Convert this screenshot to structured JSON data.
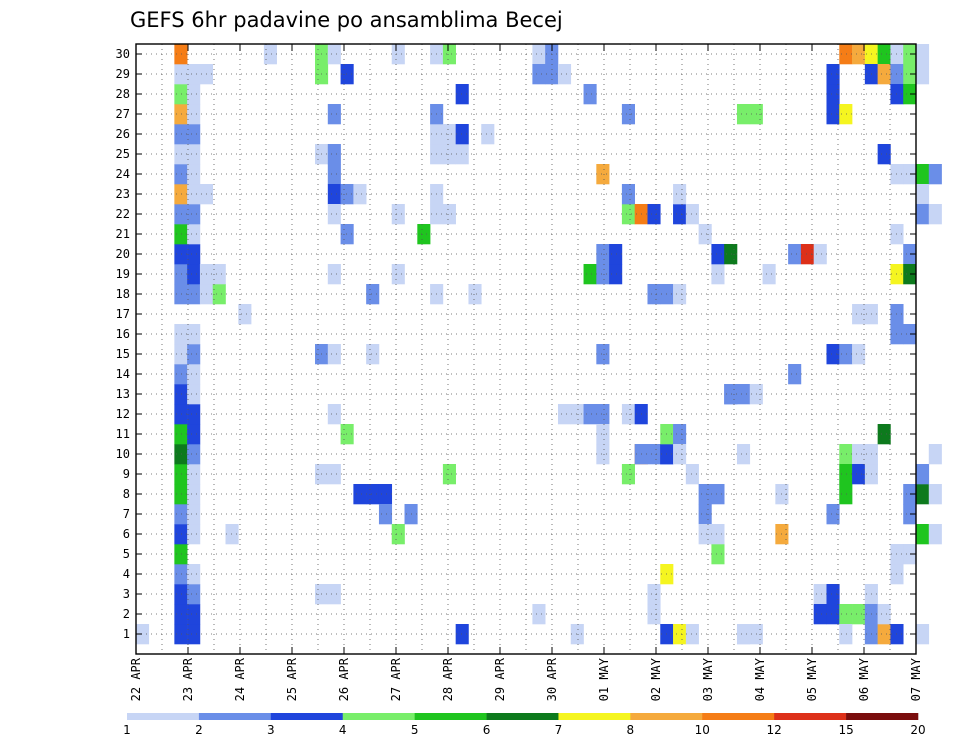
{
  "chart_data": {
    "type": "heatmap",
    "title": "GEFS 6hr padavine po ansamblima Becej",
    "x_tick_labels": [
      "22 APR",
      "23 APR",
      "24 APR",
      "25 APR",
      "26 APR",
      "27 APR",
      "28 APR",
      "29 APR",
      "30 APR",
      "01 MAY",
      "02 MAY",
      "03 MAY",
      "04 MAY",
      "05 MAY",
      "06 MAY",
      "07 MAY"
    ],
    "y_tick_labels": [
      "1",
      "2",
      "3",
      "4",
      "5",
      "6",
      "7",
      "8",
      "9",
      "10",
      "11",
      "12",
      "13",
      "14",
      "15",
      "16",
      "17",
      "18",
      "19",
      "20",
      "21",
      "22",
      "23",
      "24",
      "25",
      "26",
      "27",
      "28",
      "29",
      "30"
    ],
    "y_range": [
      0,
      30
    ],
    "x_steps": 61,
    "grid": true,
    "colorbar": {
      "colors": [
        "#c7d5f5",
        "#6a8ee8",
        "#1f45dc",
        "#78ee6a",
        "#1fc51f",
        "#0d7a1d",
        "#f5f520",
        "#f5aa3d",
        "#f57d16",
        "#dd3019",
        "#7a0d0d"
      ],
      "labels": [
        "1",
        "2",
        "3",
        "4",
        "5",
        "6",
        "7",
        "8",
        "10",
        "12",
        "15",
        "20"
      ]
    },
    "cells": [
      [
        0,
        0,
        1
      ],
      [
        3,
        0,
        3
      ],
      [
        3,
        1,
        3
      ],
      [
        3,
        2,
        3
      ],
      [
        3,
        3,
        2
      ],
      [
        3,
        4,
        5
      ],
      [
        3,
        5,
        3
      ],
      [
        3,
        6,
        2
      ],
      [
        3,
        7,
        5
      ],
      [
        3,
        8,
        5
      ],
      [
        3,
        9,
        6
      ],
      [
        3,
        10,
        5
      ],
      [
        3,
        11,
        3
      ],
      [
        3,
        12,
        3
      ],
      [
        3,
        13,
        2
      ],
      [
        3,
        14,
        1
      ],
      [
        3,
        15,
        1
      ],
      [
        3,
        17,
        2
      ],
      [
        3,
        18,
        2
      ],
      [
        3,
        19,
        3
      ],
      [
        3,
        20,
        5
      ],
      [
        3,
        21,
        2
      ],
      [
        3,
        22,
        8
      ],
      [
        3,
        23,
        2
      ],
      [
        3,
        24,
        1
      ],
      [
        3,
        25,
        2
      ],
      [
        3,
        26,
        8
      ],
      [
        3,
        27,
        4
      ],
      [
        3,
        28,
        1
      ],
      [
        3,
        29,
        9
      ],
      [
        4,
        0,
        3
      ],
      [
        4,
        1,
        3
      ],
      [
        4,
        2,
        2
      ],
      [
        4,
        3,
        1
      ],
      [
        4,
        5,
        1
      ],
      [
        4,
        6,
        1
      ],
      [
        4,
        7,
        1
      ],
      [
        4,
        8,
        1
      ],
      [
        4,
        9,
        2
      ],
      [
        4,
        10,
        3
      ],
      [
        4,
        11,
        3
      ],
      [
        4,
        12,
        1
      ],
      [
        4,
        13,
        1
      ],
      [
        4,
        14,
        2
      ],
      [
        4,
        15,
        1
      ],
      [
        4,
        17,
        2
      ],
      [
        4,
        18,
        3
      ],
      [
        4,
        19,
        3
      ],
      [
        4,
        20,
        1
      ],
      [
        4,
        21,
        2
      ],
      [
        4,
        22,
        1
      ],
      [
        4,
        23,
        1
      ],
      [
        4,
        24,
        1
      ],
      [
        4,
        25,
        2
      ],
      [
        4,
        26,
        1
      ],
      [
        4,
        27,
        1
      ],
      [
        4,
        28,
        1
      ],
      [
        5,
        17,
        1
      ],
      [
        5,
        18,
        1
      ],
      [
        5,
        22,
        1
      ],
      [
        5,
        28,
        1
      ],
      [
        6,
        17,
        4
      ],
      [
        6,
        18,
        1
      ],
      [
        7,
        5,
        1
      ],
      [
        8,
        16,
        1
      ],
      [
        10,
        29,
        1
      ],
      [
        14,
        28,
        4
      ],
      [
        14,
        29,
        4
      ],
      [
        14,
        24,
        1
      ],
      [
        14,
        14,
        2
      ],
      [
        14,
        8,
        1
      ],
      [
        14,
        2,
        1
      ],
      [
        15,
        29,
        1
      ],
      [
        15,
        24,
        2
      ],
      [
        15,
        23,
        2
      ],
      [
        15,
        22,
        3
      ],
      [
        15,
        21,
        1
      ],
      [
        15,
        18,
        1
      ],
      [
        15,
        14,
        1
      ],
      [
        15,
        11,
        1
      ],
      [
        15,
        8,
        1
      ],
      [
        15,
        26,
        2
      ],
      [
        15,
        2,
        1
      ],
      [
        16,
        28,
        3
      ],
      [
        16,
        22,
        2
      ],
      [
        16,
        20,
        2
      ],
      [
        16,
        10,
        4
      ],
      [
        17,
        22,
        1
      ],
      [
        17,
        7,
        3
      ],
      [
        18,
        17,
        2
      ],
      [
        18,
        7,
        3
      ],
      [
        18,
        14,
        1
      ],
      [
        19,
        7,
        3
      ],
      [
        19,
        6,
        2
      ],
      [
        20,
        21,
        1
      ],
      [
        20,
        29,
        1
      ],
      [
        20,
        18,
        1
      ],
      [
        20,
        5,
        4
      ],
      [
        21,
        6,
        2
      ],
      [
        22,
        20,
        5
      ],
      [
        23,
        29,
        1
      ],
      [
        23,
        22,
        1
      ],
      [
        23,
        21,
        1
      ],
      [
        23,
        24,
        1
      ],
      [
        23,
        25,
        1
      ],
      [
        23,
        26,
        2
      ],
      [
        23,
        17,
        1
      ],
      [
        24,
        24,
        1
      ],
      [
        24,
        21,
        1
      ],
      [
        24,
        25,
        1
      ],
      [
        24,
        29,
        4
      ],
      [
        24,
        8,
        4
      ],
      [
        25,
        24,
        1
      ],
      [
        25,
        25,
        3
      ],
      [
        25,
        27,
        3
      ],
      [
        25,
        0,
        3
      ],
      [
        26,
        17,
        1
      ],
      [
        27,
        25,
        1
      ],
      [
        31,
        29,
        1
      ],
      [
        31,
        28,
        2
      ],
      [
        31,
        1,
        1
      ],
      [
        32,
        29,
        2
      ],
      [
        32,
        28,
        2
      ],
      [
        33,
        28,
        1
      ],
      [
        33,
        11,
        1
      ],
      [
        34,
        11,
        1
      ],
      [
        34,
        0,
        1
      ],
      [
        35,
        11,
        2
      ],
      [
        35,
        27,
        2
      ],
      [
        35,
        18,
        5
      ],
      [
        36,
        11,
        2
      ],
      [
        36,
        9,
        1
      ],
      [
        36,
        10,
        1
      ],
      [
        36,
        14,
        2
      ],
      [
        36,
        18,
        2
      ],
      [
        36,
        19,
        2
      ],
      [
        36,
        23,
        8
      ],
      [
        37,
        18,
        3
      ],
      [
        37,
        19,
        3
      ],
      [
        38,
        26,
        2
      ],
      [
        38,
        11,
        1
      ],
      [
        38,
        21,
        4
      ],
      [
        38,
        22,
        2
      ],
      [
        38,
        8,
        4
      ],
      [
        39,
        21,
        9
      ],
      [
        39,
        9,
        9
      ],
      [
        39,
        9,
        2
      ],
      [
        39,
        11,
        3
      ],
      [
        40,
        9,
        2
      ],
      [
        40,
        17,
        2
      ],
      [
        40,
        21,
        3
      ],
      [
        40,
        1,
        1
      ],
      [
        40,
        2,
        1
      ],
      [
        41,
        9,
        3
      ],
      [
        41,
        17,
        2
      ],
      [
        41,
        9,
        3
      ],
      [
        41,
        10,
        4
      ],
      [
        41,
        3,
        7
      ],
      [
        41,
        0,
        3
      ],
      [
        42,
        17,
        1
      ],
      [
        42,
        21,
        3
      ],
      [
        42,
        22,
        1
      ],
      [
        42,
        10,
        2
      ],
      [
        42,
        9,
        1
      ],
      [
        42,
        0,
        7
      ],
      [
        43,
        21,
        1
      ],
      [
        43,
        0,
        1
      ],
      [
        43,
        8,
        1
      ],
      [
        44,
        20,
        1
      ],
      [
        44,
        7,
        2
      ],
      [
        44,
        6,
        2
      ],
      [
        44,
        5,
        1
      ],
      [
        45,
        18,
        1
      ],
      [
        45,
        19,
        3
      ],
      [
        45,
        7,
        2
      ],
      [
        45,
        4,
        4
      ],
      [
        45,
        5,
        1
      ],
      [
        46,
        19,
        6
      ],
      [
        46,
        12,
        2
      ],
      [
        46,
        12,
        2
      ],
      [
        47,
        26,
        4
      ],
      [
        47,
        12,
        2
      ],
      [
        47,
        9,
        1
      ],
      [
        47,
        0,
        1
      ],
      [
        47,
        0,
        1
      ],
      [
        48,
        26,
        4
      ],
      [
        48,
        12,
        1
      ],
      [
        48,
        0,
        1
      ],
      [
        49,
        18,
        1
      ],
      [
        50,
        7,
        1
      ],
      [
        50,
        5,
        8
      ],
      [
        51,
        19,
        2
      ],
      [
        51,
        13,
        2
      ],
      [
        52,
        19,
        10
      ],
      [
        53,
        19,
        1
      ],
      [
        53,
        2,
        1
      ],
      [
        53,
        1,
        3
      ],
      [
        54,
        27,
        3
      ],
      [
        54,
        26,
        3
      ],
      [
        54,
        28,
        3
      ],
      [
        54,
        14,
        3
      ],
      [
        54,
        6,
        2
      ],
      [
        54,
        2,
        3
      ],
      [
        54,
        1,
        3
      ],
      [
        55,
        29,
        9
      ],
      [
        55,
        26,
        7
      ],
      [
        55,
        14,
        2
      ],
      [
        55,
        9,
        4
      ],
      [
        55,
        8,
        5
      ],
      [
        55,
        7,
        5
      ],
      [
        55,
        1,
        4
      ],
      [
        55,
        0,
        1
      ],
      [
        56,
        29,
        8
      ],
      [
        56,
        16,
        1
      ],
      [
        56,
        14,
        1
      ],
      [
        56,
        9,
        1
      ],
      [
        56,
        8,
        3
      ],
      [
        56,
        1,
        4
      ],
      [
        57,
        29,
        7
      ],
      [
        57,
        28,
        3
      ],
      [
        57,
        16,
        1
      ],
      [
        57,
        8,
        1
      ],
      [
        57,
        9,
        1
      ],
      [
        57,
        2,
        1
      ],
      [
        57,
        0,
        2
      ],
      [
        57,
        1,
        2
      ],
      [
        58,
        29,
        5
      ],
      [
        58,
        28,
        8
      ],
      [
        58,
        24,
        3
      ],
      [
        58,
        10,
        6
      ],
      [
        58,
        0,
        8
      ],
      [
        58,
        1,
        1
      ],
      [
        59,
        29,
        1
      ],
      [
        59,
        28,
        2
      ],
      [
        59,
        27,
        3
      ],
      [
        59,
        23,
        1
      ],
      [
        59,
        20,
        1
      ],
      [
        59,
        18,
        7
      ],
      [
        59,
        16,
        2
      ],
      [
        59,
        15,
        2
      ],
      [
        59,
        0,
        3
      ],
      [
        59,
        3,
        1
      ],
      [
        59,
        4,
        1
      ],
      [
        60,
        29,
        4
      ],
      [
        60,
        28,
        4
      ],
      [
        60,
        27,
        5
      ],
      [
        60,
        23,
        1
      ],
      [
        60,
        19,
        2
      ],
      [
        60,
        18,
        6
      ],
      [
        60,
        15,
        2
      ],
      [
        60,
        6,
        2
      ],
      [
        60,
        7,
        2
      ],
      [
        60,
        4,
        1
      ],
      [
        61,
        29,
        1
      ],
      [
        61,
        28,
        1
      ],
      [
        61,
        23,
        5
      ],
      [
        61,
        22,
        1
      ],
      [
        61,
        21,
        2
      ],
      [
        61,
        7,
        6
      ],
      [
        61,
        5,
        5
      ],
      [
        61,
        8,
        2
      ],
      [
        61,
        0,
        1
      ],
      [
        62,
        23,
        2
      ],
      [
        62,
        21,
        1
      ],
      [
        62,
        7,
        1
      ],
      [
        62,
        5,
        1
      ],
      [
        62,
        9,
        1
      ]
    ]
  }
}
